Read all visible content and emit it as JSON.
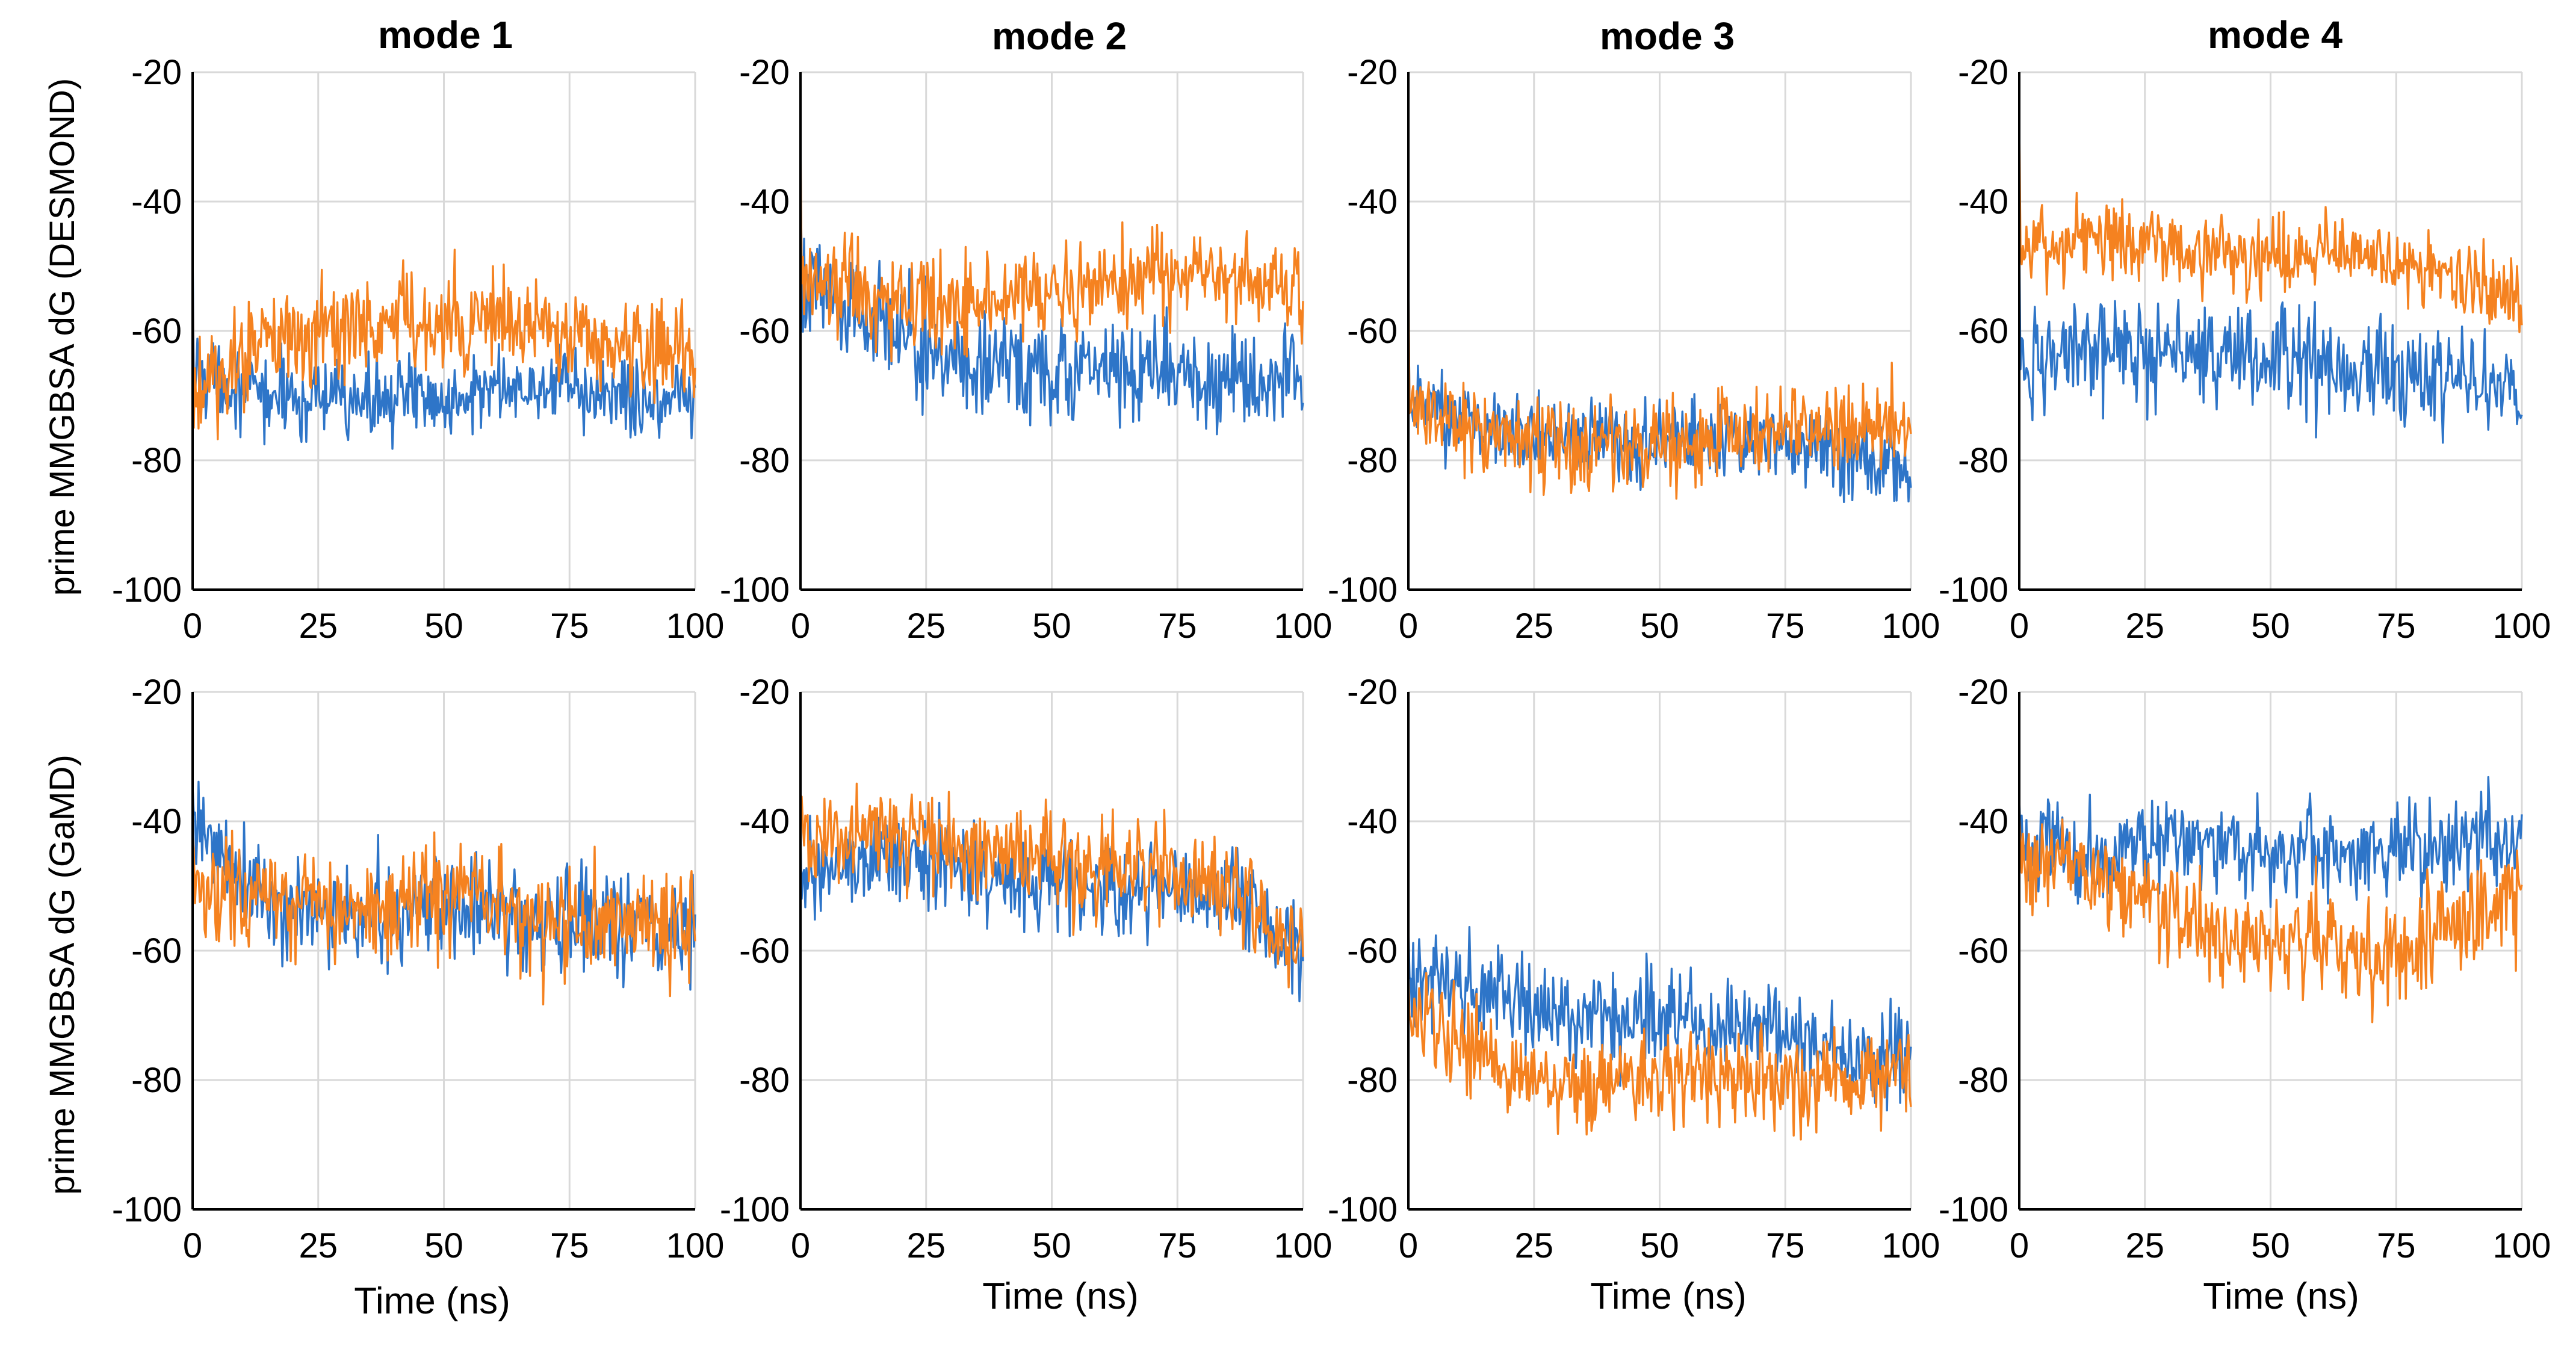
{
  "chart_data": {
    "type": "line",
    "series_colors": {
      "blue": "#2E75C8",
      "orange": "#F58220"
    },
    "column_titles": [
      "mode 1",
      "mode 2",
      "mode 3",
      "mode 4"
    ],
    "row_ylabels": [
      "prime MMGBSA dG (DESMOND)",
      "prime MMGBSA dG (GaMD)"
    ],
    "xlabel": "Time (ns)",
    "xlim": [
      0,
      100
    ],
    "ylim": [
      -100,
      -20
    ],
    "xticks": [
      "0",
      "25",
      "50",
      "75",
      "100"
    ],
    "yticks": [
      "-20",
      "-40",
      "-60",
      "-80",
      "-100"
    ],
    "panels": [
      {
        "row": "DESMOND",
        "mode": "mode 1",
        "series": [
          {
            "color": "blue",
            "mean": [
              -66,
              -70,
              -71,
              -70,
              -70,
              -69,
              -70,
              -70
            ],
            "noise": 3
          },
          {
            "color": "orange",
            "mean": [
              -70,
              -62,
              -60,
              -58,
              -59,
              -60,
              -62,
              -64
            ],
            "noise": 4
          }
        ]
      },
      {
        "row": "DESMOND",
        "mode": "mode 2",
        "series": [
          {
            "color": "blue",
            "mean": [
              -52,
              -58,
              -64,
              -66,
              -66,
              -67,
              -67,
              -67
            ],
            "noise": 4
          },
          {
            "color": "orange",
            "mean": [
              -50,
              -55,
              -56,
              -55,
              -53,
              -51,
              -52,
              -55
            ],
            "noise": 3.5
          }
        ]
      },
      {
        "row": "DESMOND",
        "mode": "mode 3",
        "series": [
          {
            "color": "blue",
            "mean": [
              -70,
              -75,
              -76,
              -77,
              -77,
              -77,
              -79,
              -81
            ],
            "noise": 3
          },
          {
            "color": "orange",
            "mean": [
              -72,
              -76,
              -77,
              -78,
              -77,
              -76,
              -75,
              -74
            ],
            "noise": 3.5
          }
        ]
      },
      {
        "row": "DESMOND",
        "mode": "mode 4",
        "series": [
          {
            "color": "blue",
            "mean": [
              -65,
              -64,
              -63,
              -64,
              -64,
              -66,
              -67,
              -70
            ],
            "noise": 4
          },
          {
            "color": "orange",
            "mean": [
              -48,
              -45,
              -47,
              -49,
              -48,
              -48,
              -52,
              -55
            ],
            "noise": 3
          }
        ]
      },
      {
        "row": "GaMD",
        "mode": "mode 1",
        "series": [
          {
            "color": "blue",
            "mean": [
              -40,
              -52,
              -55,
              -54,
              -53,
              -55,
              -56,
              -56
            ],
            "noise": 4
          },
          {
            "color": "orange",
            "mean": [
              -48,
              -53,
              -53,
              -52,
              -53,
              -56,
              -55,
              -56
            ],
            "noise": 4
          }
        ]
      },
      {
        "row": "GaMD",
        "mode": "mode 2",
        "series": [
          {
            "color": "blue",
            "mean": [
              -48,
              -46,
              -47,
              -49,
              -50,
              -51,
              -51,
              -60
            ],
            "noise": 3.5
          },
          {
            "color": "orange",
            "mean": [
              -42,
              -42,
              -43,
              -45,
              -46,
              -47,
              -50,
              -60
            ],
            "noise": 4
          }
        ]
      },
      {
        "row": "GaMD",
        "mode": "mode 3",
        "series": [
          {
            "color": "blue",
            "mean": [
              -62,
              -67,
              -70,
              -70,
              -71,
              -72,
              -74,
              -78
            ],
            "noise": 3.5
          },
          {
            "color": "orange",
            "mean": [
              -70,
              -76,
              -82,
              -80,
              -79,
              -80,
              -80,
              -80
            ],
            "noise": 3.5
          }
        ]
      },
      {
        "row": "GaMD",
        "mode": "mode 4",
        "series": [
          {
            "color": "blue",
            "mean": [
              -42,
              -45,
              -43,
              -44,
              -45,
              -45,
              -44,
              -42
            ],
            "noise": 3.5
          },
          {
            "color": "orange",
            "mean": [
              -45,
              -48,
              -52,
              -60,
              -58,
              -62,
              -57,
              -50
            ],
            "noise": 4
          }
        ]
      }
    ]
  }
}
